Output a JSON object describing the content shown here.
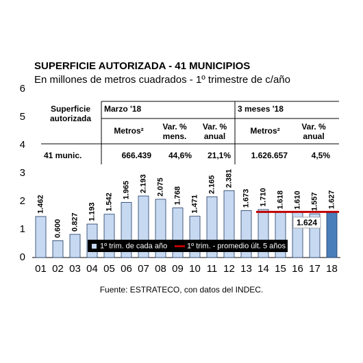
{
  "chart_data": {
    "type": "bar",
    "title": "SUPERFICIE AUTORIZADA - 41 MUNICIPIOS",
    "subtitle": "En millones de metros cuadrados - 1º trimestre de c/año",
    "categories": [
      "01",
      "02",
      "03",
      "04",
      "05",
      "06",
      "07",
      "08",
      "09",
      "10",
      "11",
      "12",
      "13",
      "14",
      "15",
      "16",
      "17",
      "18"
    ],
    "series": [
      {
        "name": "1º trim. de cada año",
        "color": "#c6d9f1",
        "colors": [
          "#c6d9f1",
          "#c6d9f1",
          "#c6d9f1",
          "#c6d9f1",
          "#c6d9f1",
          "#c6d9f1",
          "#c6d9f1",
          "#c6d9f1",
          "#c6d9f1",
          "#c6d9f1",
          "#c6d9f1",
          "#c6d9f1",
          "#c6d9f1",
          "#c6d9f1",
          "#c6d9f1",
          "#c6d9f1",
          "#c6d9f1",
          "#4a7ebb"
        ],
        "values": [
          1.462,
          0.6,
          0.827,
          1.193,
          1.542,
          1.965,
          2.193,
          2.075,
          1.768,
          1.471,
          2.165,
          2.381,
          1.673,
          1.71,
          1.618,
          1.61,
          1.557,
          1.627
        ],
        "value_labels": [
          "1.462",
          "0.600",
          "0.827",
          "1.193",
          "1.542",
          "1.965",
          "2.193",
          "2.075",
          "1.768",
          "1.471",
          "2.165",
          "2.381",
          "1.673",
          "1.710",
          "1.618",
          "1.610",
          "1.557",
          "1.627"
        ]
      }
    ],
    "reference_line": {
      "name": "1º trim. - promedio últ. 5 años",
      "color": "#c00000",
      "value": 1.624,
      "from": "14",
      "to": "18"
    },
    "ylim": [
      0,
      6
    ],
    "yticks": [
      0,
      1,
      2,
      3,
      4,
      5,
      6
    ],
    "source": "Fuente: ESTRATECO, con datos del INDEC."
  },
  "table": {
    "row_header": "Superficie autorizada",
    "groups": [
      "Marzo '18",
      "3 meses '18"
    ],
    "columns": [
      "Metros²",
      "Var. % mens.",
      "Var. % anual",
      "Metros²",
      "Var. % anual"
    ],
    "row": [
      "41 munic.",
      "666.439",
      "44,6%",
      "21,1%",
      "1.626.657",
      "4,5%"
    ]
  }
}
